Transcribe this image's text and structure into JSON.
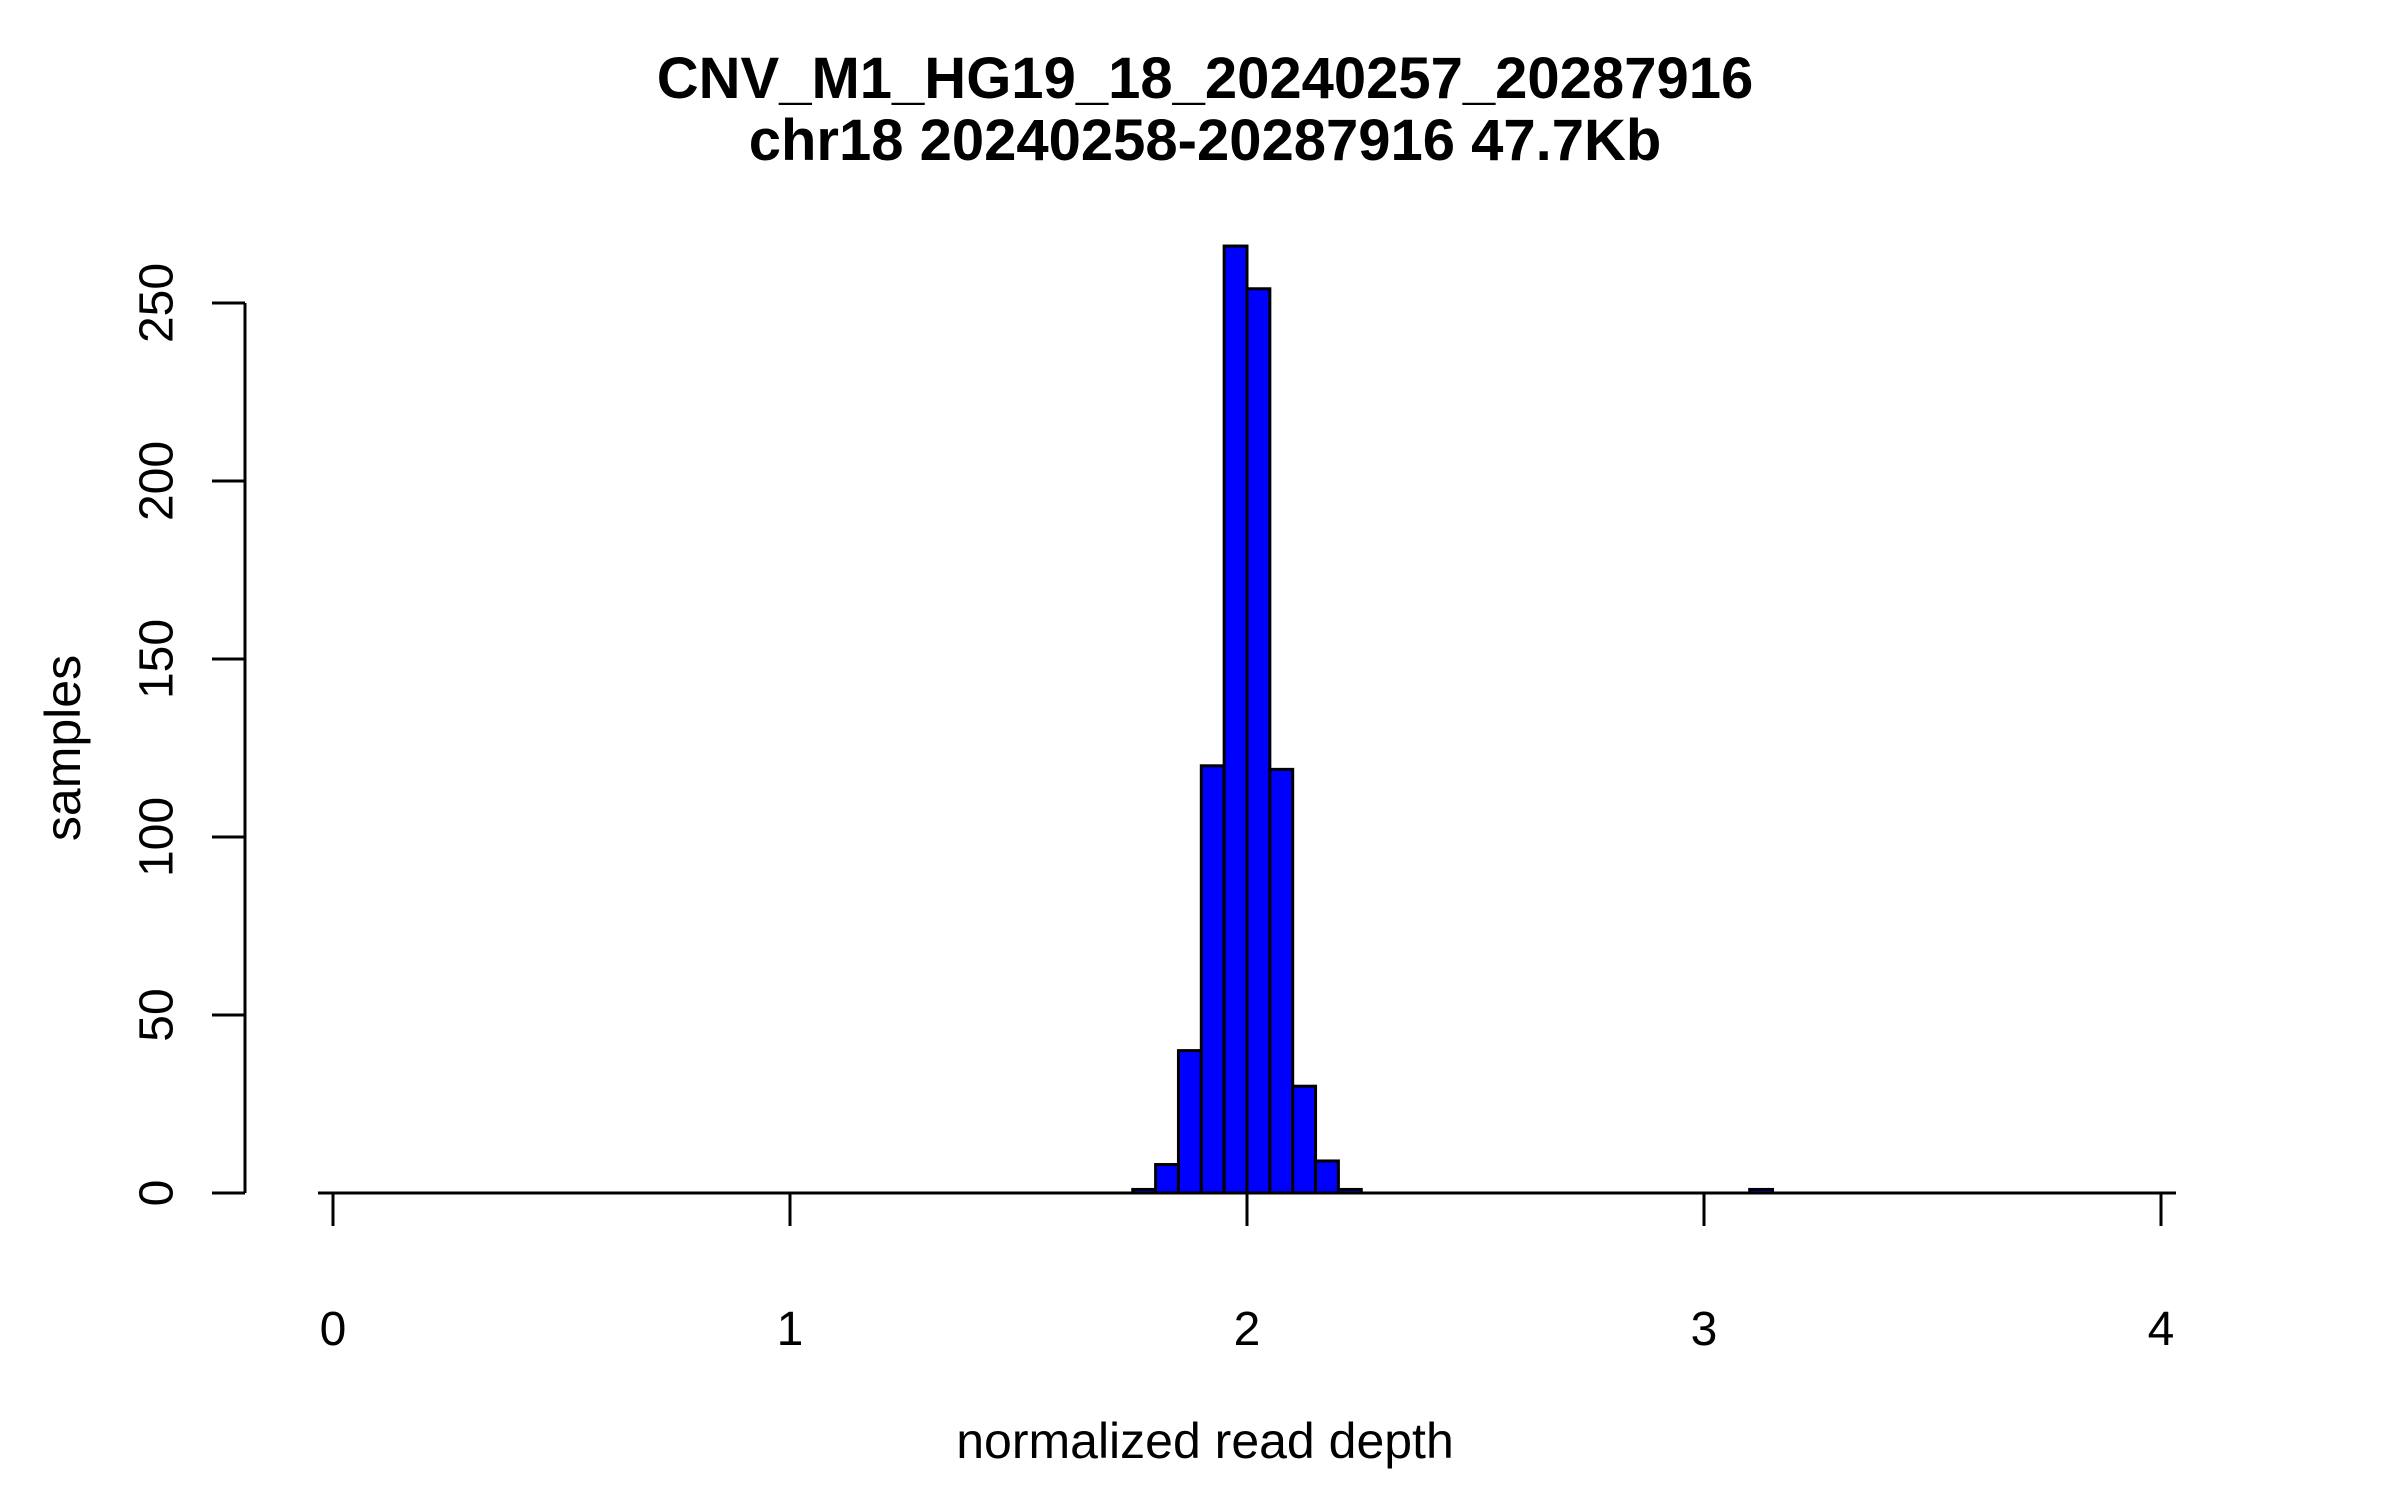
{
  "chart_data": {
    "type": "bar",
    "subtype": "histogram",
    "title": "CNV_M1_HG19_18_20240257_20287916",
    "subtitle": "chr18 20240258-20287916 47.7Kb",
    "xlabel": "normalized read depth",
    "ylabel": "samples",
    "x_ticks": [
      0,
      1,
      2,
      3,
      4
    ],
    "y_ticks": [
      0,
      50,
      100,
      150,
      200,
      250
    ],
    "xlim": [
      -0.03,
      4.07
    ],
    "ylim": [
      0,
      266
    ],
    "grid": false,
    "legend": "none",
    "bin_width": 0.05,
    "bars": [
      {
        "x0": 1.75,
        "count": 1
      },
      {
        "x0": 1.8,
        "count": 8
      },
      {
        "x0": 1.85,
        "count": 40
      },
      {
        "x0": 1.9,
        "count": 120
      },
      {
        "x0": 1.95,
        "count": 266
      },
      {
        "x0": 2.0,
        "count": 254
      },
      {
        "x0": 2.05,
        "count": 119
      },
      {
        "x0": 2.1,
        "count": 30
      },
      {
        "x0": 2.15,
        "count": 9
      },
      {
        "x0": 2.2,
        "count": 1
      },
      {
        "x0": 3.1,
        "count": 1
      }
    ],
    "colors": {
      "bar_fill": "#0000ff",
      "bar_border": "#000000",
      "axis": "#000000",
      "text": "#000000",
      "background": "#ffffff"
    }
  }
}
